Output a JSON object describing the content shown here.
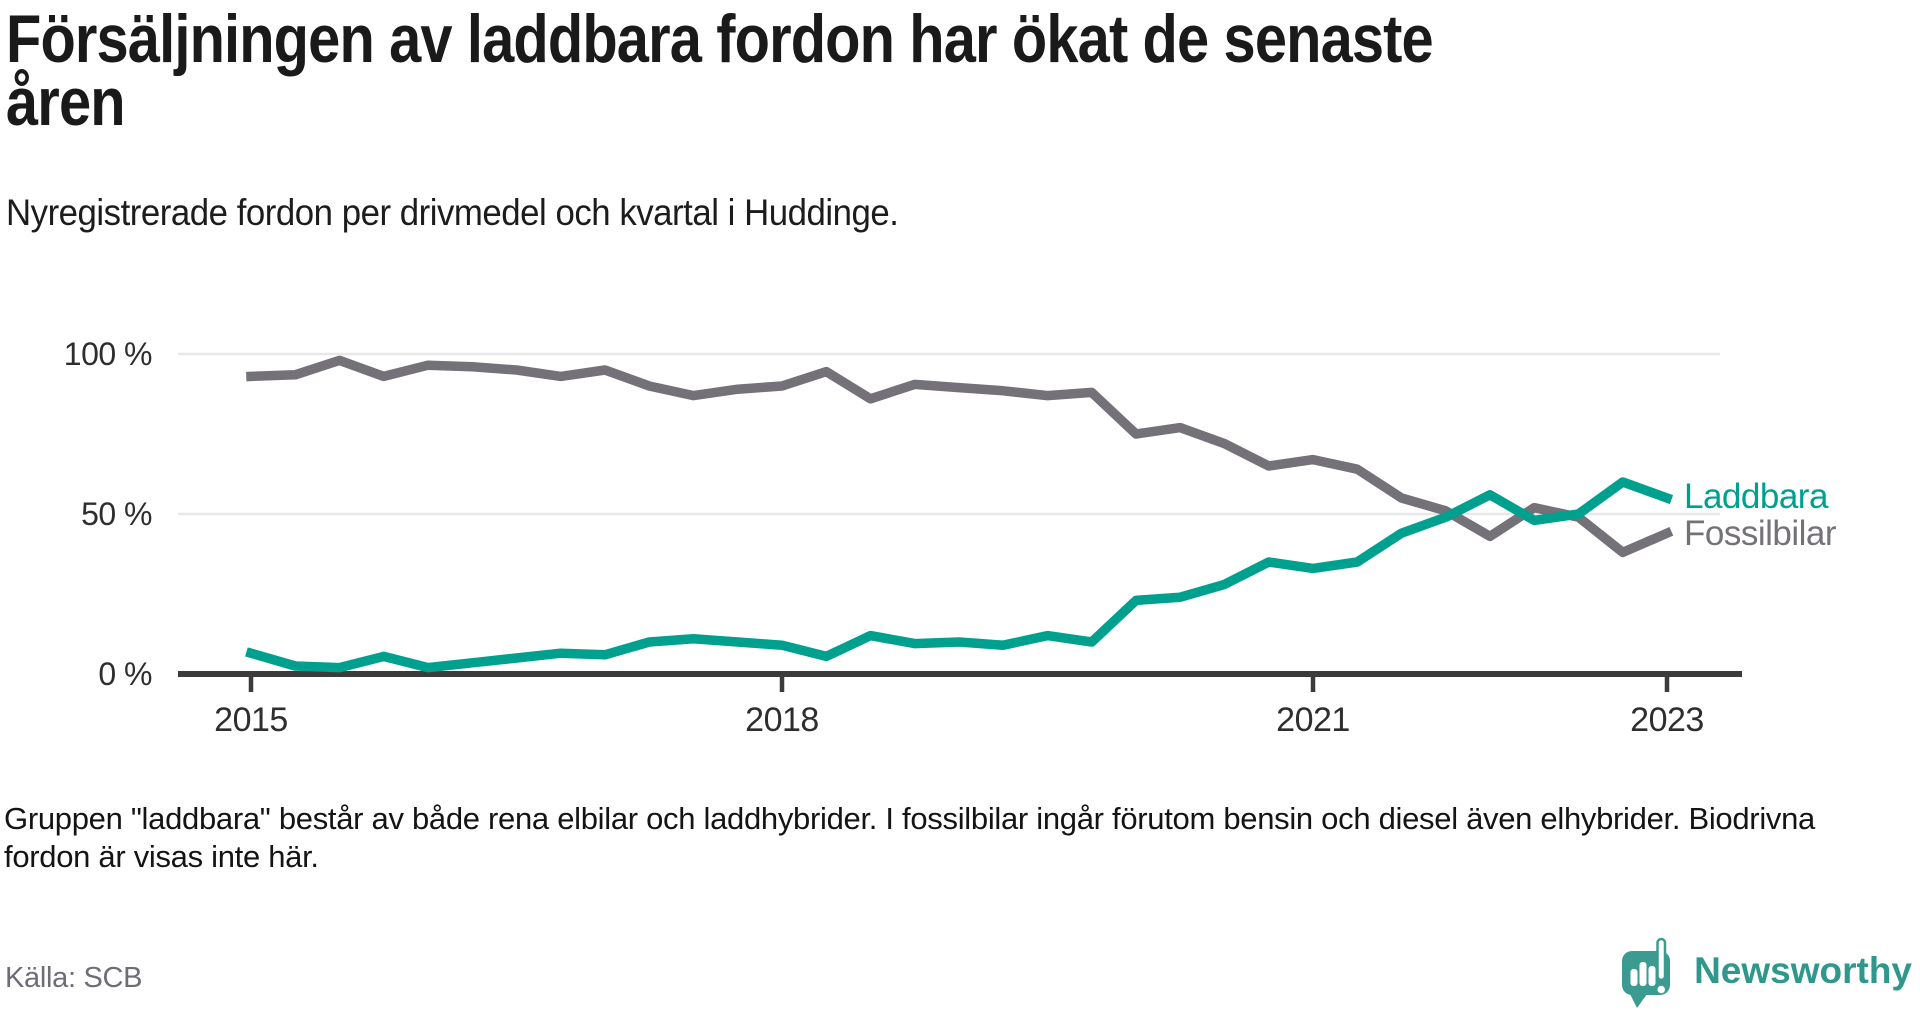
{
  "header": {
    "title": "Försäljningen av laddbara fordon har ökat de senaste åren",
    "subtitle": "Nyregistrerade fordon per drivmedel och kvartal i Huddinge."
  },
  "chart_data": {
    "type": "line",
    "x": [
      "2015 Q1",
      "2015 Q2",
      "2015 Q3",
      "2015 Q4",
      "2016 Q1",
      "2016 Q2",
      "2016 Q3",
      "2016 Q4",
      "2017 Q1",
      "2017 Q2",
      "2017 Q3",
      "2017 Q4",
      "2018 Q1",
      "2018 Q2",
      "2018 Q3",
      "2018 Q4",
      "2019 Q1",
      "2019 Q2",
      "2019 Q3",
      "2019 Q4",
      "2020 Q1",
      "2020 Q2",
      "2020 Q3",
      "2020 Q4",
      "2021 Q1",
      "2021 Q2",
      "2021 Q3",
      "2021 Q4",
      "2022 Q1",
      "2022 Q2",
      "2022 Q3",
      "2022 Q4",
      "2023 Q1"
    ],
    "series": [
      {
        "name": "Laddbara",
        "color": "#00a08f",
        "values": [
          6.5,
          2.5,
          2,
          5.5,
          2,
          3.5,
          5,
          6.5,
          6,
          10,
          11,
          10,
          9,
          5.5,
          12,
          9.5,
          10,
          9,
          12,
          10,
          23,
          24,
          28,
          35,
          33,
          35,
          44,
          49,
          56,
          48,
          50,
          60,
          55
        ]
      },
      {
        "name": "Fossilbilar",
        "color": "#757179",
        "values": [
          93,
          93.5,
          98,
          93,
          96.5,
          96,
          95,
          93,
          95,
          90,
          87,
          89,
          90,
          94.5,
          86,
          90.5,
          89.5,
          88.5,
          87,
          88,
          75,
          77,
          72,
          65,
          67,
          64,
          55,
          51,
          43,
          52,
          49,
          38,
          44
        ]
      }
    ],
    "x_ticks": [
      {
        "label": "2015",
        "quarter_index": 0
      },
      {
        "label": "2018",
        "quarter_index": 12
      },
      {
        "label": "2021",
        "quarter_index": 24
      },
      {
        "label": "2023",
        "quarter_index": 32
      }
    ],
    "y_ticks": [
      {
        "label": "100 %",
        "value": 100
      },
      {
        "label": "50 %",
        "value": 50
      },
      {
        "label": "0 %",
        "value": 0
      }
    ],
    "ylim": [
      0,
      100
    ],
    "unit": "%",
    "grid": "horizontal",
    "legend_position": "end-of-line-labels"
  },
  "footer": {
    "note": "Gruppen \"laddbara\" består av både rena elbilar och laddhybrider. I fossilbilar ingår förutom bensin och diesel även elhybrider. Biodrivna fordon är visas inte här.",
    "source": "Källa: SCB"
  },
  "brand": {
    "name": "Newsworthy",
    "text_color": "#2f978c",
    "icon_color": "#3c9b90"
  },
  "colors": {
    "gridline": "#e8e8e8",
    "axis": "#3b3b3b",
    "title_text": "#1a1a1a",
    "axis_text": "#2e2e2e",
    "note_text": "#141414",
    "source_text": "#6d6d77"
  }
}
